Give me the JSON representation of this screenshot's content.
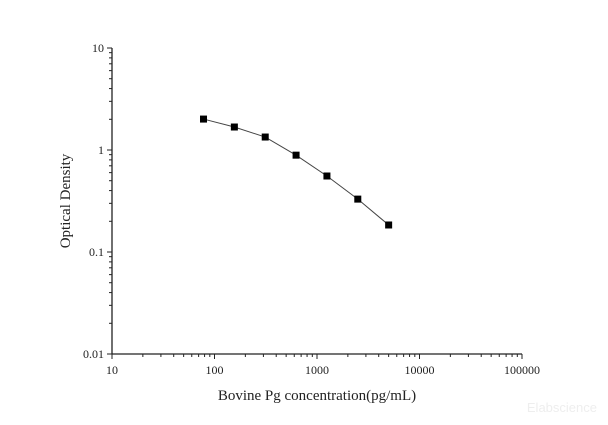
{
  "chart_data": {
    "type": "line",
    "title": "",
    "xlabel": "Bovine Pg concentration(pg/mL)",
    "ylabel": "Optical Density",
    "x_scale": "log",
    "y_scale": "log",
    "xlim": [
      10,
      100000
    ],
    "ylim": [
      0.01,
      10
    ],
    "x_ticks": [
      "10",
      "100",
      "1000",
      "10000",
      "100000"
    ],
    "y_ticks": [
      "0.01",
      "0.1",
      "1",
      "10"
    ],
    "grid": false,
    "marker": "square",
    "series": [
      {
        "x": [
          78.125,
          156.25,
          312.5,
          625,
          1250,
          2500,
          5000
        ],
        "y": [
          2.01,
          1.68,
          1.34,
          0.89,
          0.556,
          0.33,
          0.184
        ],
        "color": "#000000"
      }
    ],
    "watermark": "Elabscience"
  }
}
